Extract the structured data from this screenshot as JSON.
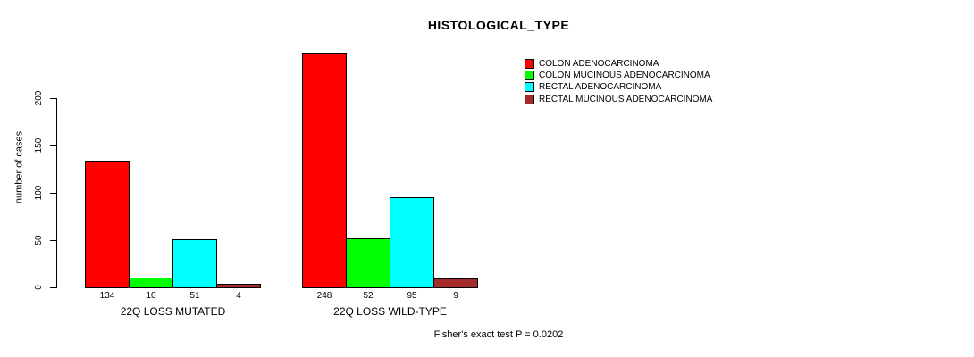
{
  "chart_data": {
    "type": "bar",
    "title": "HISTOLOGICAL_TYPE",
    "ylabel": "number of cases",
    "yticks": [
      0,
      50,
      100,
      150,
      200
    ],
    "ylim": [
      0,
      248
    ],
    "grid": false,
    "legend_position": "top-right",
    "categories": [
      "22Q LOSS MUTATED",
      "22Q LOSS WILD-TYPE"
    ],
    "series": [
      {
        "name": "COLON ADENOCARCINOMA",
        "color": "#FF0000",
        "values": [
          134,
          248
        ]
      },
      {
        "name": "COLON MUCINOUS ADENOCARCINOMA",
        "color": "#00FF00",
        "values": [
          10,
          52
        ]
      },
      {
        "name": "RECTAL ADENOCARCINOMA",
        "color": "#00FFFF",
        "values": [
          51,
          95
        ]
      },
      {
        "name": "RECTAL MUCINOUS ADENOCARCINOMA",
        "color": "#A52A2A",
        "values": [
          4,
          9
        ]
      }
    ],
    "bar_value_labels": [
      [
        134,
        10,
        51,
        4
      ],
      [
        248,
        52,
        95,
        9
      ]
    ],
    "footnote": "Fisher's exact test P = 0.0202"
  }
}
